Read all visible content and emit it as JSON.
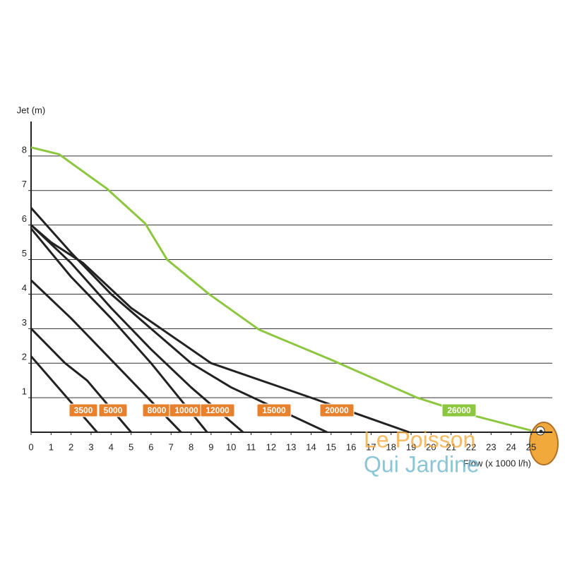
{
  "chart_data": {
    "type": "line",
    "y_label": "Jet (m)",
    "x_label": "Flow (x 1000 l/h)",
    "xlim": [
      0,
      25
    ],
    "ylim": [
      0,
      9
    ],
    "xticks": [
      0,
      1,
      2,
      3,
      4,
      5,
      6,
      7,
      8,
      9,
      10,
      11,
      12,
      13,
      14,
      15,
      16,
      17,
      18,
      19,
      20,
      21,
      22,
      23,
      24,
      25
    ],
    "yticks": [
      1,
      2,
      3,
      4,
      5,
      6,
      7,
      8
    ],
    "grid": true,
    "series": [
      {
        "name": "3500",
        "color": "#222222",
        "label_color": "#e8812e",
        "x": [
          0,
          3.3
        ],
        "values": [
          2.2,
          0
        ]
      },
      {
        "name": "5000",
        "color": "#222222",
        "label_color": "#e8812e",
        "x": [
          0,
          1.7,
          2.8,
          5
        ],
        "values": [
          3.0,
          2.0,
          1.5,
          0
        ]
      },
      {
        "name": "8000",
        "color": "#222222",
        "label_color": "#e8812e",
        "x": [
          0,
          2,
          4,
          7.5
        ],
        "values": [
          4.4,
          3.3,
          2.1,
          0
        ]
      },
      {
        "name": "10000",
        "color": "#222222",
        "label_color": "#e8812e",
        "x": [
          0,
          2,
          4,
          6,
          8.8
        ],
        "values": [
          5.9,
          4.5,
          3.3,
          2.0,
          0
        ]
      },
      {
        "name": "12000",
        "color": "#222222",
        "label_color": "#e8812e",
        "x": [
          0,
          2,
          4,
          6,
          8,
          10.6
        ],
        "values": [
          6.0,
          4.9,
          3.6,
          2.4,
          1.3,
          0
        ]
      },
      {
        "name": "15000",
        "color": "#222222",
        "label_color": "#e8812e",
        "x": [
          0,
          2,
          4,
          6,
          8,
          10,
          14.8
        ],
        "values": [
          6.5,
          5.2,
          4.0,
          3.0,
          2.0,
          1.3,
          0
        ]
      },
      {
        "name": "20000",
        "color": "#222222",
        "label_color": "#e8812e",
        "x": [
          0,
          1,
          2.6,
          5,
          9,
          14,
          18.9
        ],
        "values": [
          6.0,
          5.5,
          4.9,
          3.6,
          2.0,
          1.0,
          0
        ]
      },
      {
        "name": "26000",
        "color": "#8dc63f",
        "label_color": "#8dc63f",
        "x": [
          0,
          1.4,
          3.8,
          5.7,
          6.8,
          8.9,
          11.4,
          15,
          19.3,
          22,
          25
        ],
        "values": [
          8.25,
          8.05,
          7.05,
          6.05,
          5.0,
          4.0,
          2.97,
          2.1,
          1.0,
          0.5,
          0.05
        ]
      }
    ],
    "watermark": [
      "Le Poisson",
      "Qui Jardine"
    ]
  }
}
